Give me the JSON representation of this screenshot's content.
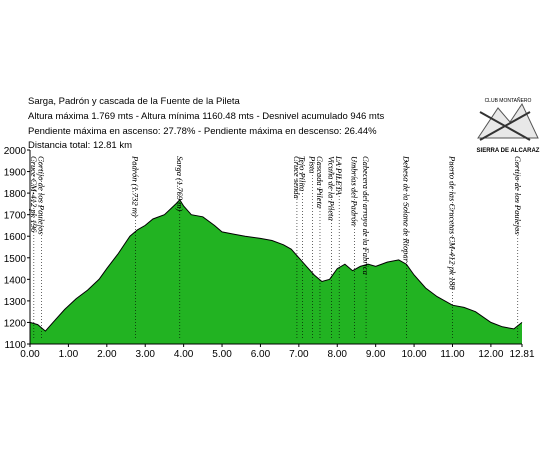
{
  "chart_data": {
    "type": "area",
    "title": "Sarga, Padrón y cascada  de la Fuente de la Pileta",
    "subtitles": [
      "Altura máxima 1.769 mts - Altura mínima 1160.48 mts - Desnivel acumulado 946 mts",
      "Pendiente máxima en ascenso: 27.78%  - Pendiente máxima en descenso: 26.44%",
      "Distancia total: 12.81 km"
    ],
    "logo_text": [
      "CLUB MONTAÑERO",
      "SIERRA DE ALCARAZ"
    ],
    "color": "#22b322",
    "x": [
      0,
      0.2,
      0.4,
      0.6,
      0.9,
      1.2,
      1.5,
      1.8,
      2.0,
      2.3,
      2.6,
      2.8,
      3.0,
      3.2,
      3.5,
      3.8,
      3.9,
      4.0,
      4.2,
      4.5,
      4.8,
      5.0,
      5.3,
      5.6,
      6.0,
      6.3,
      6.6,
      6.8,
      7.0,
      7.2,
      7.4,
      7.6,
      7.8,
      8.0,
      8.2,
      8.4,
      8.6,
      8.8,
      9.0,
      9.3,
      9.6,
      9.8,
      10.0,
      10.3,
      10.6,
      11.0,
      11.3,
      11.6,
      12.0,
      12.3,
      12.6,
      12.81
    ],
    "values": [
      1200,
      1190,
      1160,
      1200,
      1260,
      1310,
      1350,
      1400,
      1450,
      1520,
      1600,
      1630,
      1650,
      1680,
      1700,
      1750,
      1769,
      1740,
      1700,
      1690,
      1650,
      1620,
      1610,
      1600,
      1590,
      1580,
      1560,
      1540,
      1500,
      1460,
      1420,
      1390,
      1400,
      1450,
      1470,
      1440,
      1460,
      1470,
      1460,
      1480,
      1490,
      1470,
      1420,
      1360,
      1320,
      1280,
      1270,
      1250,
      1200,
      1180,
      1170,
      1200
    ],
    "xlim": [
      0,
      12.81
    ],
    "xticks": [
      {
        "value": 0,
        "label": "0.00"
      },
      {
        "value": 1,
        "label": "1.00"
      },
      {
        "value": 2,
        "label": "2.00"
      },
      {
        "value": 3,
        "label": "3.00"
      },
      {
        "value": 4,
        "label": "4.00"
      },
      {
        "value": 5,
        "label": "5.00"
      },
      {
        "value": 6,
        "label": "6.00"
      },
      {
        "value": 7,
        "label": "7.00"
      },
      {
        "value": 8,
        "label": "8.00"
      },
      {
        "value": 9,
        "label": "9.00"
      },
      {
        "value": 10,
        "label": "10.00"
      },
      {
        "value": 11,
        "label": "11.00"
      },
      {
        "value": 12,
        "label": "12.00"
      },
      {
        "value": 12.81,
        "label": "12.81"
      }
    ],
    "ylim": [
      1100,
      2000
    ],
    "yticks": [
      1100,
      1200,
      1300,
      1400,
      1500,
      1600,
      1700,
      1800,
      1900,
      2000
    ],
    "annotations": [
      {
        "text": "Cruce CM-412 pk 196",
        "x": 0.1
      },
      {
        "text": "Cortijo de los Paulejos",
        "x": 0.3
      },
      {
        "text": "Padrón (1.732 m)",
        "x": 2.75
      },
      {
        "text": "Sarga (1.769 m)",
        "x": 3.9
      },
      {
        "text": "Cruce senda",
        "x": 6.95
      },
      {
        "text": "Tejo Pilita",
        "x": 7.1
      },
      {
        "text": "Pista",
        "x": 7.35
      },
      {
        "text": "Cascada Pileta",
        "x": 7.55
      },
      {
        "text": "Vicuña de la Pileta",
        "x": 7.85
      },
      {
        "text": "LA PILETA",
        "x": 8.05
      },
      {
        "text": "Umbrías del Padrón",
        "x": 8.45
      },
      {
        "text": "Cabecera del arroyo de la Fabrica",
        "x": 8.75
      },
      {
        "text": "Dehesa de la Solana de Riopar",
        "x": 9.8
      },
      {
        "text": "Puerto de las Crucetas CM-412 pk 188",
        "x": 11.0
      },
      {
        "text": "Cortijo de los Paulejos",
        "x": 12.7
      }
    ]
  }
}
